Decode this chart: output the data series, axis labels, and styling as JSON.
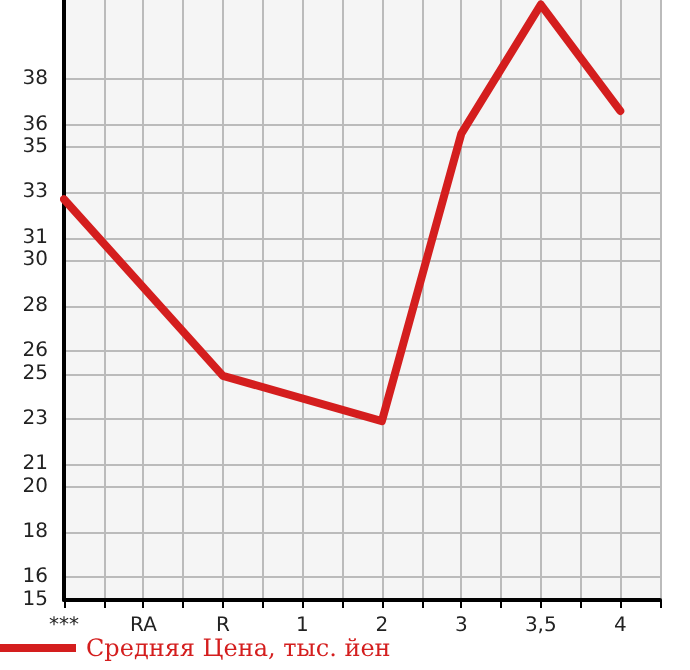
{
  "chart_data": {
    "type": "line",
    "categories": [
      "***",
      "RA",
      "R",
      "1",
      "2",
      "3",
      "3,5",
      "4"
    ],
    "series": [
      {
        "name": "Средняя Цена, тыс. йен",
        "color": "#d41e1e",
        "values": [
          32.7,
          null,
          24.9,
          null,
          22.9,
          35.6,
          41.3,
          36.6
        ]
      }
    ],
    "ylim": [
      15,
      41.5
    ],
    "yticks": [
      15,
      16,
      18,
      20,
      21,
      23,
      25,
      26,
      28,
      30,
      31,
      33,
      35,
      36,
      38
    ],
    "grid": true,
    "legend": "bottom left",
    "marker": "none",
    "line_style": "solid"
  }
}
